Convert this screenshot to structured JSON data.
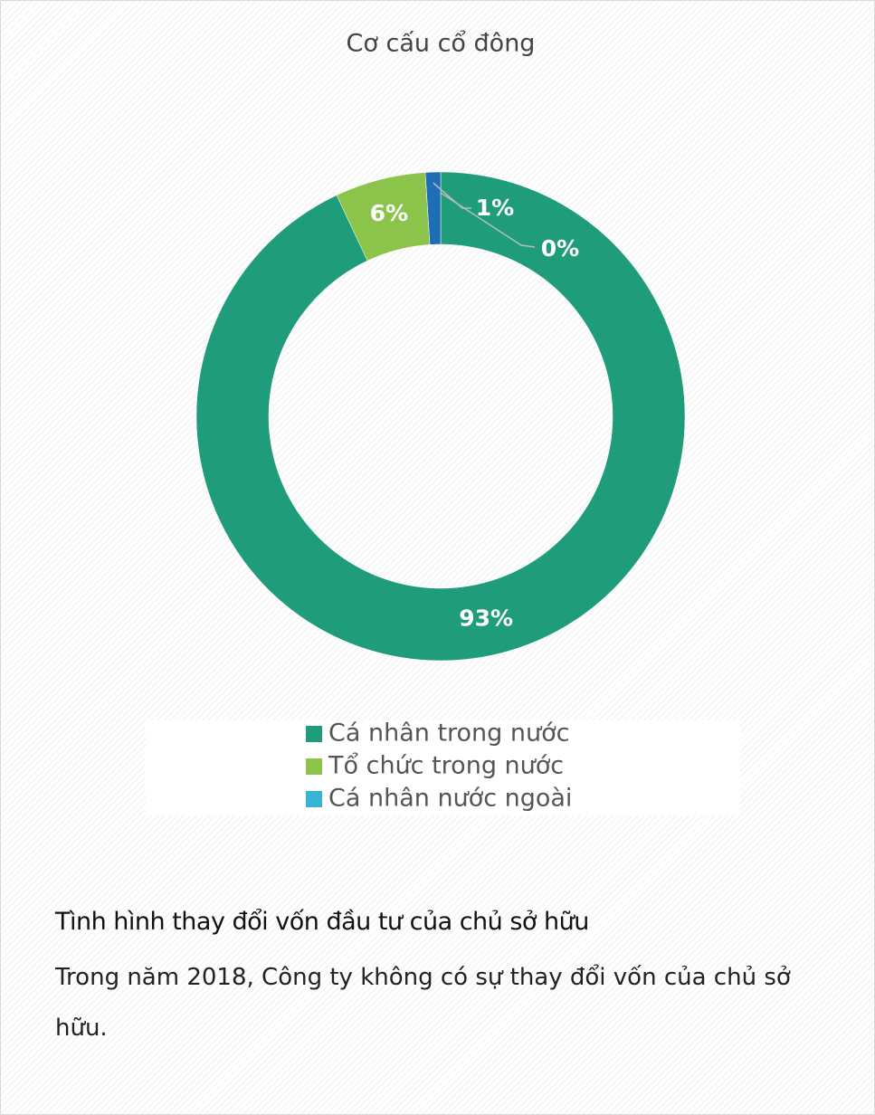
{
  "chart_data": {
    "type": "donut",
    "title": "Cơ cấu cổ đông",
    "categories": [
      "Cá nhân trong nước",
      "Tổ chức trong nước",
      "Cá nhân nước ngoài",
      null
    ],
    "values": [
      93,
      6,
      0,
      1
    ],
    "value_labels": [
      "93%",
      "6%",
      "0%",
      "1%"
    ],
    "colors": [
      "#1f9c79",
      "#8cc34a",
      "#37b4d4",
      "#1f6db4"
    ],
    "legend": "bottom"
  },
  "section": {
    "heading": "Tình hình thay đổi vốn đầu tư của chủ sở hữu",
    "paragraph": "Trong năm 2018, Công ty không có sự thay đổi vốn của chủ sở hữu."
  }
}
